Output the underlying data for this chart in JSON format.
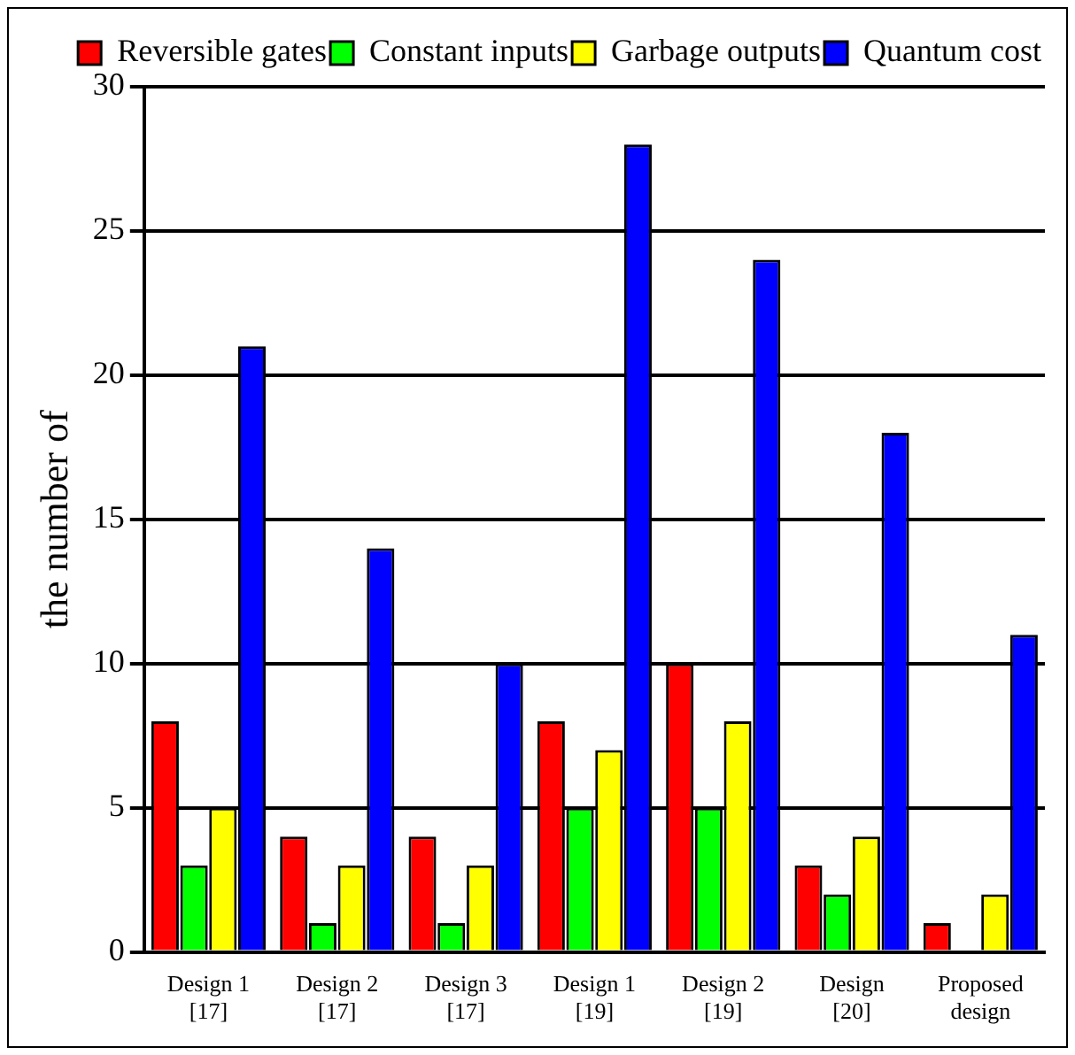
{
  "chart_data": {
    "type": "bar",
    "ylabel": "the number of",
    "categories": [
      "Design 1 [17]",
      "Design 2 [17]",
      "Design 3 [17]",
      "Design 1 [19]",
      "Design 2 [19]",
      "Design [20]",
      "Proposed design"
    ],
    "series": [
      {
        "name": "Reversible gates",
        "color": "#ff0000",
        "values": [
          8,
          4,
          4,
          8,
          10,
          3,
          1
        ]
      },
      {
        "name": "Constant inputs",
        "color": "#00ff00",
        "values": [
          3,
          1,
          1,
          5,
          5,
          2,
          0
        ]
      },
      {
        "name": "Garbage outputs",
        "color": "#ffff00",
        "values": [
          5,
          3,
          3,
          7,
          8,
          4,
          2
        ]
      },
      {
        "name": "Quantum cost",
        "color": "#0000ff",
        "values": [
          21,
          14,
          10,
          28,
          24,
          18,
          11
        ]
      }
    ],
    "ylim": [
      0,
      30
    ],
    "yticks": [
      0,
      5,
      10,
      15,
      20,
      25,
      30
    ],
    "grid": "y",
    "legend": "top right"
  }
}
